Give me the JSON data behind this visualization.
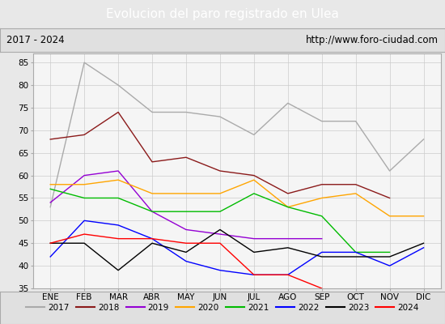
{
  "title": "Evolucion del paro registrado en Ulea",
  "subtitle_left": "2017 - 2024",
  "subtitle_right": "http://www.foro-ciudad.com",
  "months": [
    "ENE",
    "FEB",
    "MAR",
    "ABR",
    "MAY",
    "JUN",
    "JUL",
    "AGO",
    "SEP",
    "OCT",
    "NOV",
    "DIC"
  ],
  "series": {
    "2017": {
      "color": "#aaaaaa",
      "data": [
        53,
        85,
        80,
        74,
        74,
        73,
        69,
        76,
        72,
        72,
        61,
        68
      ]
    },
    "2018": {
      "color": "#8b1a1a",
      "data": [
        68,
        69,
        74,
        63,
        64,
        61,
        60,
        56,
        58,
        58,
        55,
        null
      ]
    },
    "2019": {
      "color": "#9400d3",
      "data": [
        54,
        60,
        61,
        52,
        48,
        47,
        46,
        46,
        46,
        null,
        null,
        null
      ]
    },
    "2020": {
      "color": "#ffa500",
      "data": [
        58,
        58,
        59,
        56,
        56,
        56,
        59,
        53,
        55,
        56,
        51,
        51
      ]
    },
    "2021": {
      "color": "#00bb00",
      "data": [
        57,
        55,
        55,
        52,
        52,
        52,
        56,
        53,
        51,
        43,
        43,
        null
      ]
    },
    "2022": {
      "color": "#0000ff",
      "data": [
        42,
        50,
        49,
        46,
        41,
        39,
        38,
        38,
        43,
        43,
        40,
        44
      ]
    },
    "2023": {
      "color": "#000000",
      "data": [
        45,
        45,
        39,
        45,
        43,
        48,
        43,
        44,
        42,
        42,
        42,
        45
      ]
    },
    "2024": {
      "color": "#ff0000",
      "data": [
        45,
        47,
        46,
        46,
        45,
        45,
        38,
        38,
        35,
        null,
        null,
        null
      ]
    }
  },
  "ylim": [
    35,
    87
  ],
  "yticks": [
    35,
    40,
    45,
    50,
    55,
    60,
    65,
    70,
    75,
    80,
    85
  ],
  "bg_color": "#e8e8e8",
  "plot_bg_color": "#f5f5f5",
  "title_bg_color": "#4da6ff",
  "title_color": "#ffffff",
  "header_bg_color": "#e0e0e0",
  "grid_color": "#cccccc"
}
